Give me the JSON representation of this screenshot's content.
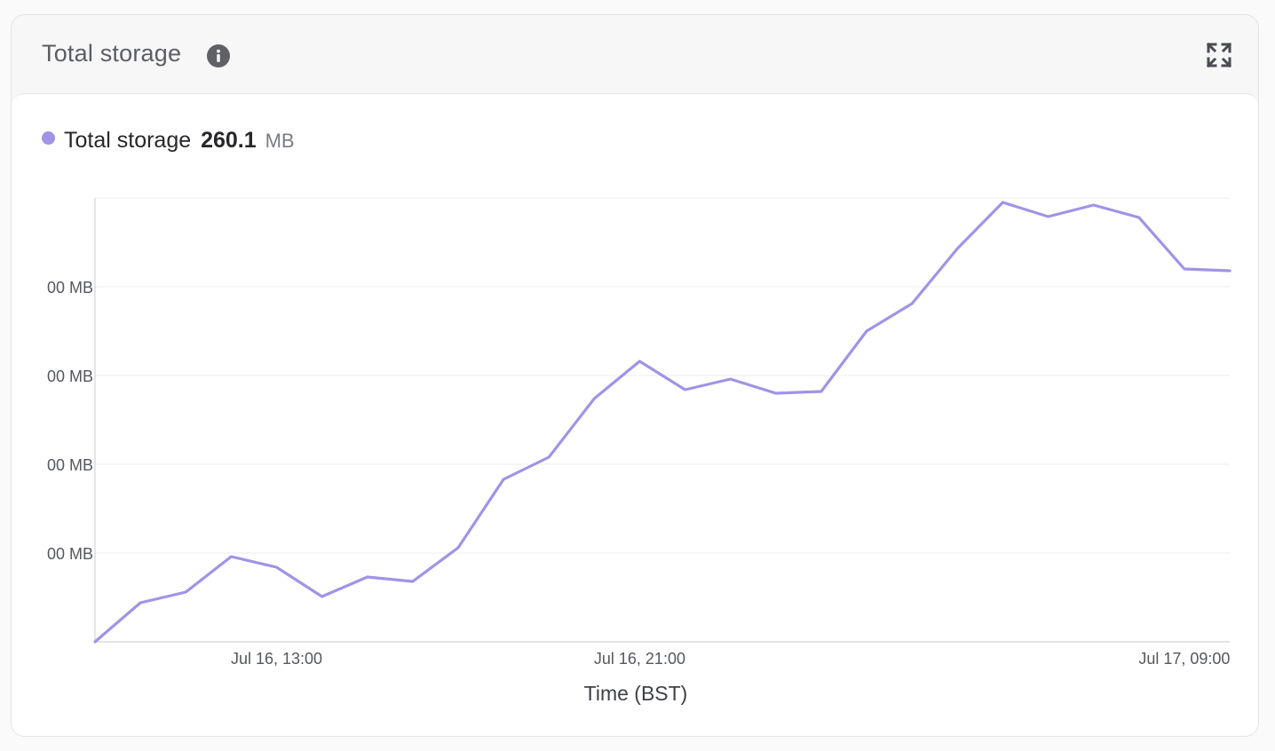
{
  "widget": {
    "title": "Total storage"
  },
  "legend": {
    "label": "Total storage",
    "value": "260.1",
    "unit": "MB"
  },
  "colors": {
    "series": "#a193e6",
    "grid": "#ececee",
    "axis": "#d4d4d8",
    "tick_text": "#55575c"
  },
  "icons": {
    "info": "info-icon",
    "expand": "expand-icon"
  },
  "chart_data": {
    "type": "line",
    "xlabel": "Time (BST)",
    "ylabel": "",
    "x_ticks": [
      "Jul 16, 13:00",
      "Jul 16, 21:00",
      "Jul 17, 09:00"
    ],
    "y_ticks": [
      "00 MB",
      "00 MB",
      "00 MB",
      "00 MB"
    ],
    "grid": true,
    "series": [
      {
        "name": "Total storage",
        "x": [
          "Jul 16, 09:00",
          "Jul 16, 10:00",
          "Jul 16, 11:00",
          "Jul 16, 12:00",
          "Jul 16, 13:00",
          "Jul 16, 14:00",
          "Jul 16, 15:00",
          "Jul 16, 16:00",
          "Jul 16, 17:00",
          "Jul 16, 18:00",
          "Jul 16, 19:00",
          "Jul 16, 20:00",
          "Jul 16, 21:00",
          "Jul 16, 22:00",
          "Jul 16, 23:00",
          "Jul 17, 00:00",
          "Jul 17, 01:00",
          "Jul 17, 02:00",
          "Jul 17, 03:00",
          "Jul 17, 04:00",
          "Jul 17, 05:00",
          "Jul 17, 06:00",
          "Jul 17, 07:00",
          "Jul 17, 08:00",
          "Jul 17, 09:00",
          "Jul 17, 10:00"
        ],
        "values": [
          0.0,
          0.44,
          0.56,
          0.96,
          0.84,
          0.51,
          0.73,
          0.68,
          1.06,
          1.83,
          2.08,
          2.74,
          3.16,
          2.84,
          2.96,
          2.8,
          2.82,
          3.5,
          3.81,
          4.43,
          4.95,
          4.79,
          4.92,
          4.78,
          4.2,
          4.18
        ]
      }
    ]
  }
}
